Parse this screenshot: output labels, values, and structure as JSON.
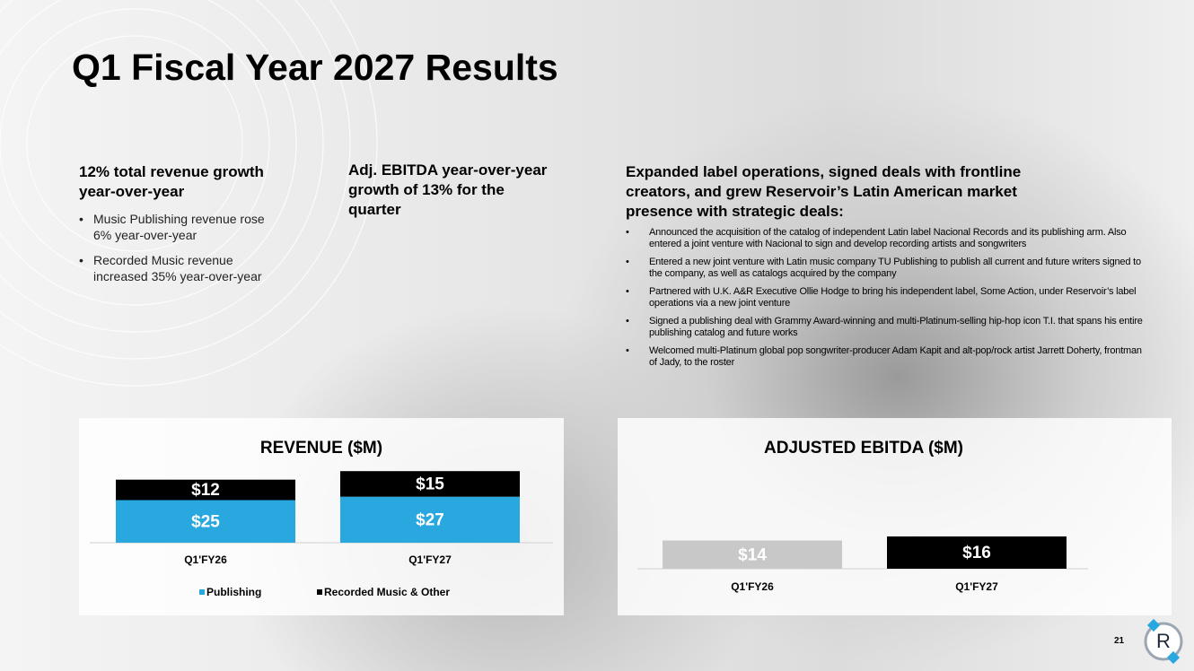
{
  "title": "Q1 Fiscal Year 2027 Results",
  "columns": [
    {
      "heading": "12% total revenue growth year-over-year",
      "bullets": [
        "Music Publishing revenue rose 6% year-over-year",
        "Recorded Music revenue increased 35% year-over-year"
      ]
    },
    {
      "heading": "Adj. EBITDA year-over-year growth of 13% for the quarter"
    },
    {
      "heading": "Expanded label operations, signed deals with frontline creators, and grew Reservoir’s Latin American market presence with strategic deals:",
      "bullets": [
        "Announced the acquisition of the catalog of independent Latin label Nacional Records and its publishing arm. Also entered a joint venture with Nacional to sign and develop recording artists and songwriters",
        "Entered a new joint venture with Latin music company TU Publishing to publish all current and future writers signed to the company, as well as catalogs acquired by the company",
        "Partnered with U.K. A&R Executive Ollie Hodge to bring his independent label, Some Action, under Reservoir’s label operations via a new joint venture",
        "Signed a publishing deal with Grammy Award-winning and multi-Platinum-selling hip-hop icon T.I. that spans his entire publishing catalog and future works",
        "Welcomed multi-Platinum global pop songwriter-producer Adam Kapit and alt-pop/rock artist Jarrett Doherty, frontman of Jady, to the roster"
      ]
    }
  ],
  "chart_data": [
    {
      "type": "bar",
      "title": "REVENUE ($M)",
      "stacked": true,
      "categories": [
        "Q1'FY26",
        "Q1'FY27"
      ],
      "series": [
        {
          "name": "Publishing",
          "color": "#29a8e0",
          "values": [
            25,
            27
          ],
          "value_labels": [
            "$25",
            "$27"
          ]
        },
        {
          "name": "Recorded Music & Other",
          "color": "#000000",
          "values": [
            12,
            15
          ],
          "value_labels": [
            "$12",
            "$15"
          ]
        }
      ],
      "legend": "bottom"
    },
    {
      "type": "bar",
      "title": "ADJUSTED EBITDA ($M)",
      "categories": [
        "Q1'FY26",
        "Q1'FY27"
      ],
      "values": [
        14,
        16
      ],
      "value_labels": [
        "$14",
        "$16"
      ],
      "colors": [
        "#c8c8c8",
        "#000000"
      ]
    }
  ],
  "page_number": "21"
}
